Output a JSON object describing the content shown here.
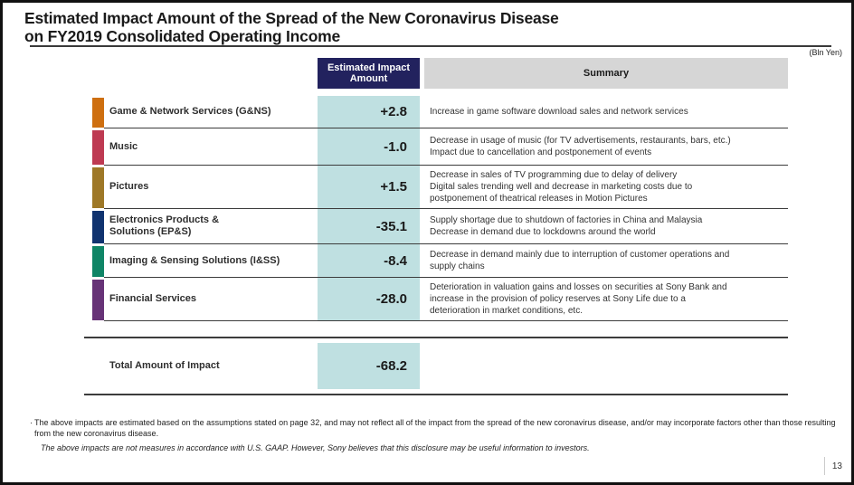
{
  "slide": {
    "title_line1": "Estimated Impact Amount of the Spread of the New Coronavirus Disease",
    "title_line2": "on FY2019 Consolidated Operating Income",
    "unit_note": "(Bln Yen)",
    "page_number": "13"
  },
  "table": {
    "headers": {
      "amount": "Estimated Impact Amount",
      "summary": "Summary"
    },
    "rows": [
      {
        "segment": "Game & Network Services (G&NS)",
        "color": "#CE6F10",
        "amount": "+2.8",
        "summary": "Increase in game software download sales and network services"
      },
      {
        "segment": "Music",
        "color": "#BE3A52",
        "amount": "-1.0",
        "summary": "Decrease in usage of music (for TV advertisements, restaurants, bars, etc.)\nImpact due to cancellation and postponement of events"
      },
      {
        "segment": "Pictures",
        "color": "#9E7827",
        "amount": "+1.5",
        "summary": "Decrease in sales of TV programming due to delay of delivery\nDigital sales trending well and decrease in marketing costs due to\npostponement of theatrical releases in Motion Pictures"
      },
      {
        "segment": "Electronics Products &\nSolutions (EP&S)",
        "color": "#10336F",
        "amount": "-35.1",
        "summary": "Supply shortage due to shutdown of factories in China and Malaysia\nDecrease in demand due to lockdowns around the world"
      },
      {
        "segment": "Imaging & Sensing Solutions (I&SS)",
        "color": "#0F8566",
        "amount": "-8.4",
        "summary": "Decrease in demand mainly due to interruption of customer operations and\nsupply chains"
      },
      {
        "segment": "Financial Services",
        "color": "#673377",
        "amount": "-28.0",
        "summary": "Deterioration in valuation gains and losses on securities at Sony Bank and\nincrease in the provision of policy reserves at Sony Life due to a\ndeterioration in market conditions, etc."
      }
    ],
    "total": {
      "label": "Total Amount of Impact",
      "amount": "-68.2"
    }
  },
  "footnotes": {
    "bullet": "·",
    "note1": "The above impacts are estimated based on the assumptions stated on page 32, and may not reflect all of the impact from the spread of the new coronavirus disease, and/or may incorporate factors other than those resulting from the new coronavirus disease.",
    "note2": "The above impacts are not measures in accordance with U.S. GAAP. However, Sony believes that this disclosure may be useful information to investors."
  },
  "colors": {
    "header_navy": "#22225E",
    "header_gray": "#D6D6D6",
    "amount_teal": "#BFE0E1"
  }
}
